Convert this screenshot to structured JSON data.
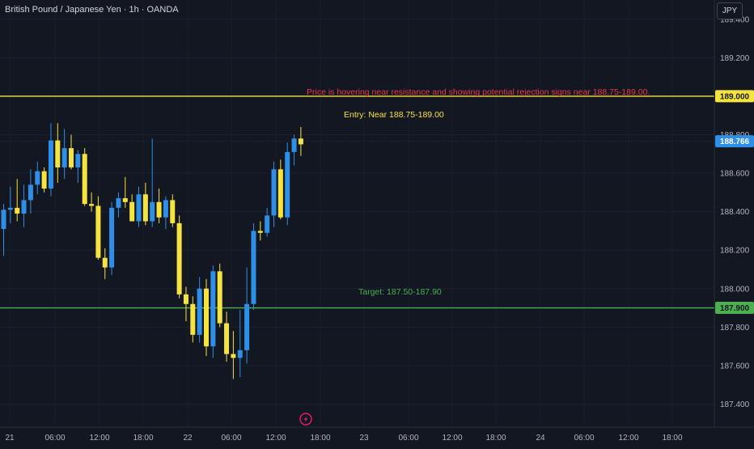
{
  "header": {
    "symbol_title": "British Pound / Japanese Yen · 1h · OANDA",
    "currency_label": "JPY"
  },
  "colors": {
    "background": "#131722",
    "bull": "#2f8fe6",
    "bear": "#f5e342",
    "resistance_line": "#f5e342",
    "target_line": "#4caf50",
    "annotation_red": "#f23645",
    "axis_text": "#b2b5be",
    "current_price_badge": "#2f8fe6"
  },
  "chart_data": {
    "type": "candlestick",
    "ylim": [
      187.28,
      189.5
    ],
    "y_ticks": [
      "189.400",
      "189.200",
      "188.800",
      "188.600",
      "188.400",
      "188.200",
      "188.000",
      "187.800",
      "187.600",
      "187.400"
    ],
    "x_ticks": [
      "21",
      "06:00",
      "12:00",
      "18:00",
      "22",
      "06:00",
      "12:00",
      "18:00",
      "23",
      "06:00",
      "12:00",
      "18:00",
      "24",
      "06:00",
      "12:00",
      "18:00"
    ],
    "candles": [
      {
        "o": 188.31,
        "h": 188.44,
        "l": 188.17,
        "c": 188.41
      },
      {
        "o": 188.41,
        "h": 188.53,
        "l": 188.34,
        "c": 188.42
      },
      {
        "o": 188.42,
        "h": 188.57,
        "l": 188.35,
        "c": 188.39
      },
      {
        "o": 188.39,
        "h": 188.54,
        "l": 188.32,
        "c": 188.46
      },
      {
        "o": 188.46,
        "h": 188.62,
        "l": 188.39,
        "c": 188.54
      },
      {
        "o": 188.54,
        "h": 188.66,
        "l": 188.49,
        "c": 188.61
      },
      {
        "o": 188.61,
        "h": 188.63,
        "l": 188.5,
        "c": 188.52
      },
      {
        "o": 188.52,
        "h": 188.86,
        "l": 188.48,
        "c": 188.77
      },
      {
        "o": 188.77,
        "h": 188.86,
        "l": 188.55,
        "c": 188.63
      },
      {
        "o": 188.63,
        "h": 188.83,
        "l": 188.57,
        "c": 188.73
      },
      {
        "o": 188.73,
        "h": 188.8,
        "l": 188.62,
        "c": 188.63
      },
      {
        "o": 188.63,
        "h": 188.72,
        "l": 188.55,
        "c": 188.7
      },
      {
        "o": 188.7,
        "h": 188.73,
        "l": 188.43,
        "c": 188.44
      },
      {
        "o": 188.44,
        "h": 188.5,
        "l": 188.4,
        "c": 188.43
      },
      {
        "o": 188.43,
        "h": 188.48,
        "l": 188.15,
        "c": 188.16
      },
      {
        "o": 188.16,
        "h": 188.21,
        "l": 188.05,
        "c": 188.11
      },
      {
        "o": 188.11,
        "h": 188.45,
        "l": 188.07,
        "c": 188.42
      },
      {
        "o": 188.42,
        "h": 188.5,
        "l": 188.37,
        "c": 188.47
      },
      {
        "o": 188.47,
        "h": 188.58,
        "l": 188.42,
        "c": 188.45
      },
      {
        "o": 188.45,
        "h": 188.49,
        "l": 188.35,
        "c": 188.35
      },
      {
        "o": 188.35,
        "h": 188.53,
        "l": 188.32,
        "c": 188.49
      },
      {
        "o": 188.49,
        "h": 188.55,
        "l": 188.33,
        "c": 188.35
      },
      {
        "o": 188.35,
        "h": 188.78,
        "l": 188.32,
        "c": 188.45
      },
      {
        "o": 188.45,
        "h": 188.52,
        "l": 188.34,
        "c": 188.37
      },
      {
        "o": 188.37,
        "h": 188.48,
        "l": 188.31,
        "c": 188.46
      },
      {
        "o": 188.46,
        "h": 188.49,
        "l": 188.32,
        "c": 188.34
      },
      {
        "o": 188.34,
        "h": 188.38,
        "l": 187.95,
        "c": 187.97
      },
      {
        "o": 187.97,
        "h": 188.01,
        "l": 187.83,
        "c": 187.92
      },
      {
        "o": 187.92,
        "h": 187.96,
        "l": 187.72,
        "c": 187.76
      },
      {
        "o": 187.76,
        "h": 188.06,
        "l": 187.72,
        "c": 188.0
      },
      {
        "o": 188.0,
        "h": 188.05,
        "l": 187.65,
        "c": 187.7
      },
      {
        "o": 187.7,
        "h": 188.12,
        "l": 187.64,
        "c": 188.09
      },
      {
        "o": 188.09,
        "h": 188.13,
        "l": 187.8,
        "c": 187.82
      },
      {
        "o": 187.82,
        "h": 187.88,
        "l": 187.62,
        "c": 187.66
      },
      {
        "o": 187.66,
        "h": 187.78,
        "l": 187.53,
        "c": 187.64
      },
      {
        "o": 187.64,
        "h": 187.89,
        "l": 187.54,
        "c": 187.68
      },
      {
        "o": 187.68,
        "h": 188.11,
        "l": 187.61,
        "c": 187.92
      },
      {
        "o": 187.92,
        "h": 188.34,
        "l": 187.89,
        "c": 188.3
      },
      {
        "o": 188.3,
        "h": 188.35,
        "l": 188.25,
        "c": 188.29
      },
      {
        "o": 188.29,
        "h": 188.42,
        "l": 188.27,
        "c": 188.38
      },
      {
        "o": 188.38,
        "h": 188.66,
        "l": 188.32,
        "c": 188.62
      },
      {
        "o": 188.62,
        "h": 188.67,
        "l": 188.36,
        "c": 188.37
      },
      {
        "o": 188.37,
        "h": 188.76,
        "l": 188.33,
        "c": 188.71
      },
      {
        "o": 188.71,
        "h": 188.8,
        "l": 188.64,
        "c": 188.78
      },
      {
        "o": 188.78,
        "h": 188.84,
        "l": 188.69,
        "c": 188.75
      }
    ],
    "levels": [
      {
        "name": "resistance",
        "price": 189.0,
        "label": "189.000",
        "color": "#f5e342"
      },
      {
        "name": "target",
        "price": 187.9,
        "label": "187.900",
        "color": "#4caf50"
      },
      {
        "name": "current",
        "price": 188.766,
        "label": "188.766",
        "color": "#2f8fe6"
      }
    ],
    "annotations": {
      "rejection": "Price is hovering near resistance and showing potential rejection signs near 188.75-189.00.",
      "entry": "Entry: Near 188.75-189.00",
      "target": "Target: 187.50-187.90"
    }
  }
}
